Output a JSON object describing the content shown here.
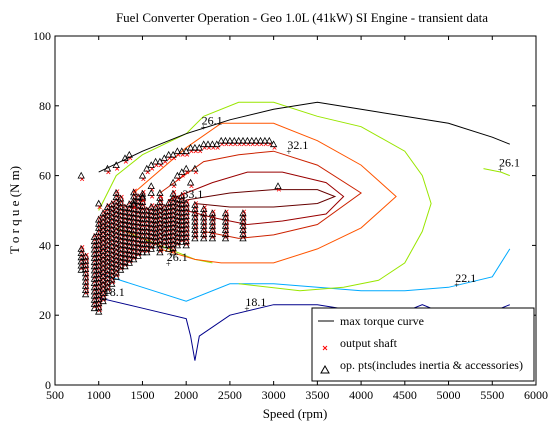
{
  "chart_data": {
    "type": "scatter",
    "title": "Fuel Converter Operation - Geo 1.0L (41kW) SI Engine - transient data",
    "xlabel": "Speed (rpm)",
    "ylabel": "T o r q u e  (N m)",
    "xlim": [
      500,
      6000
    ],
    "ylim": [
      0,
      100
    ],
    "xticks": [
      500,
      1000,
      1500,
      2000,
      2500,
      3000,
      3500,
      4000,
      4500,
      5000,
      5500,
      6000
    ],
    "yticks": [
      0,
      20,
      40,
      60,
      80,
      100
    ],
    "grid": false,
    "legend_position": "bottom-right",
    "legend": [
      {
        "label": "max torque curve",
        "marker": "line",
        "color": "#000000"
      },
      {
        "label": "output shaft",
        "marker": "x",
        "color": "#ff0000"
      },
      {
        "label": "op. pts(includes inertia & accessories)",
        "marker": "triangle",
        "color": "#000000"
      }
    ],
    "max_torque_curve": {
      "x": [
        1000,
        1500,
        2000,
        2500,
        3000,
        3500,
        4000,
        4500,
        5000,
        5500,
        5700
      ],
      "y": [
        61,
        67,
        72,
        76,
        79,
        81,
        79,
        77,
        75,
        71,
        69
      ]
    },
    "contours": [
      {
        "label": "18.1",
        "color": "#00008b",
        "x": [
          1000,
          1500,
          2000,
          2050,
          2100,
          2150,
          2500,
          3000,
          3500,
          4000,
          4500,
          4700,
          5000,
          5500,
          5700
        ],
        "y": [
          25,
          22,
          19,
          14,
          7,
          14,
          20,
          23,
          23,
          21,
          21,
          23,
          20,
          21,
          23
        ]
      },
      {
        "label": "22.1",
        "color": "#00aaff",
        "x": [
          1000,
          1500,
          2000,
          2500,
          3000,
          3500,
          4000,
          4500,
          5000,
          5500,
          5700
        ],
        "y": [
          32,
          28,
          24,
          29,
          29,
          28,
          27,
          27,
          28,
          31,
          39
        ]
      },
      {
        "label": "26.1",
        "color": "#99e600",
        "x": [
          1000,
          1200,
          1500,
          2000,
          2200,
          2600,
          3000,
          3500,
          4000,
          4500,
          4700,
          4800,
          4700,
          4500,
          4200,
          3800,
          3300,
          2600
        ],
        "y": [
          50,
          60,
          66,
          72,
          77,
          81,
          81,
          77,
          74,
          67,
          60,
          52,
          44,
          35,
          30,
          28,
          27,
          29
        ]
      },
      {
        "label": "26.1",
        "color": "#99e600",
        "x": [
          5400,
          5600,
          5700
        ],
        "y": [
          62,
          61,
          60
        ]
      },
      {
        "label": "26.1",
        "color": "#99e600",
        "x": [
          1200,
          1500,
          1800,
          2100,
          2300
        ],
        "y": [
          45,
          42,
          39,
          36,
          35
        ]
      },
      {
        "label": "",
        "color": "#ff5500",
        "x": [
          1400,
          2000,
          2400,
          3000,
          3500,
          4000,
          4400,
          4000,
          3500,
          3000,
          2400,
          2100,
          1700
        ],
        "y": [
          55,
          68,
          75,
          75,
          70,
          63,
          54,
          45,
          39,
          35,
          35,
          36,
          39
        ]
      },
      {
        "label": "32.1",
        "color": "#cc2200",
        "x": [
          1700,
          2200,
          2600,
          3000,
          3500,
          4000,
          3500,
          3000,
          2600,
          2200
        ],
        "y": [
          55,
          64,
          66,
          67,
          63,
          55,
          46,
          43,
          42,
          44
        ]
      },
      {
        "label": "33.1",
        "color": "#990000",
        "x": [
          1800,
          2300,
          2700,
          3100,
          3600,
          3800,
          3600,
          3100,
          2700,
          2300,
          2000
        ],
        "y": [
          53,
          58,
          61,
          61,
          58,
          54,
          49,
          47,
          46,
          48,
          50
        ]
      },
      {
        "label": "",
        "color": "#660000",
        "x": [
          2000,
          2500,
          3000,
          3500,
          3700,
          3500,
          3000,
          2500,
          2100
        ],
        "y": [
          53,
          55,
          56,
          56,
          54,
          52,
          51,
          51,
          52
        ]
      }
    ],
    "contour_labels": [
      {
        "text": "26.1",
        "x": 2200,
        "y": 74
      },
      {
        "text": "32.1",
        "x": 3180,
        "y": 67
      },
      {
        "text": "26.1",
        "x": 5600,
        "y": 62
      },
      {
        "text": "33.1",
        "x": 1980,
        "y": 53
      },
      {
        "text": "26.1",
        "x": 1800,
        "y": 35
      },
      {
        "text": "22.1",
        "x": 5100,
        "y": 29
      },
      {
        "text": "18.1",
        "x": 2700,
        "y": 22
      },
      {
        "text": "18.1",
        "x": 1080,
        "y": 25
      }
    ],
    "op_points_upper": [
      [
        800,
        60
      ],
      [
        1000,
        52
      ],
      [
        1100,
        62
      ],
      [
        1200,
        63
      ],
      [
        1300,
        65
      ],
      [
        1350,
        66
      ],
      [
        1500,
        60
      ],
      [
        1550,
        62
      ],
      [
        1600,
        63
      ],
      [
        1650,
        64
      ],
      [
        1700,
        64
      ],
      [
        1750,
        65
      ],
      [
        1800,
        66
      ],
      [
        1850,
        66
      ],
      [
        1900,
        67
      ],
      [
        1950,
        67
      ],
      [
        2000,
        67
      ],
      [
        2050,
        68
      ],
      [
        2100,
        68
      ],
      [
        2150,
        68
      ],
      [
        2200,
        69
      ],
      [
        2250,
        69
      ],
      [
        2300,
        69
      ],
      [
        2350,
        69
      ],
      [
        2400,
        70
      ],
      [
        2450,
        70
      ],
      [
        2500,
        70
      ],
      [
        2550,
        70
      ],
      [
        2600,
        70
      ],
      [
        2650,
        70
      ],
      [
        2700,
        70
      ],
      [
        2750,
        70
      ],
      [
        2800,
        70
      ],
      [
        2850,
        70
      ],
      [
        2900,
        70
      ],
      [
        2950,
        70
      ],
      [
        3000,
        69
      ],
      [
        3050,
        57
      ],
      [
        1700,
        55
      ],
      [
        1850,
        58
      ],
      [
        1900,
        60
      ],
      [
        1950,
        61
      ],
      [
        2000,
        62
      ],
      [
        2100,
        62
      ],
      [
        1600,
        57
      ],
      [
        2050,
        58
      ],
      [
        1400,
        52
      ],
      [
        1500,
        54
      ],
      [
        1600,
        55
      ]
    ],
    "op_points_bands": [
      {
        "x": 950,
        "ymin": 22,
        "ymax": 43
      },
      {
        "x": 1000,
        "ymin": 21,
        "ymax": 48
      },
      {
        "x": 1050,
        "ymin": 24,
        "ymax": 50
      },
      {
        "x": 1100,
        "ymin": 27,
        "ymax": 52
      },
      {
        "x": 1150,
        "ymin": 29,
        "ymax": 53
      },
      {
        "x": 1200,
        "ymin": 31,
        "ymax": 56
      },
      {
        "x": 1250,
        "ymin": 33,
        "ymax": 54
      },
      {
        "x": 1300,
        "ymin": 34,
        "ymax": 52
      },
      {
        "x": 1350,
        "ymin": 35,
        "ymax": 53
      },
      {
        "x": 1400,
        "ymin": 36,
        "ymax": 56
      },
      {
        "x": 1450,
        "ymin": 37,
        "ymax": 54
      },
      {
        "x": 1500,
        "ymin": 38,
        "ymax": 55
      },
      {
        "x": 1550,
        "ymin": 38,
        "ymax": 51
      },
      {
        "x": 1600,
        "ymin": 39,
        "ymax": 52
      },
      {
        "x": 1650,
        "ymin": 40,
        "ymax": 51
      },
      {
        "x": 1700,
        "ymin": 38,
        "ymax": 54
      },
      {
        "x": 1750,
        "ymin": 40,
        "ymax": 52
      },
      {
        "x": 1800,
        "ymin": 39,
        "ymax": 53
      },
      {
        "x": 1850,
        "ymin": 38,
        "ymax": 55
      },
      {
        "x": 1900,
        "ymin": 40,
        "ymax": 54
      },
      {
        "x": 1950,
        "ymin": 41,
        "ymax": 55
      },
      {
        "x": 2000,
        "ymin": 40,
        "ymax": 53
      },
      {
        "x": 2100,
        "ymin": 42,
        "ymax": 52
      },
      {
        "x": 2200,
        "ymin": 42,
        "ymax": 51
      },
      {
        "x": 2300,
        "ymin": 42,
        "ymax": 50
      },
      {
        "x": 2450,
        "ymin": 42,
        "ymax": 50
      },
      {
        "x": 2650,
        "ymin": 42,
        "ymax": 50
      },
      {
        "x": 800,
        "ymin": 33,
        "ymax": 40
      },
      {
        "x": 850,
        "ymin": 26,
        "ymax": 38
      }
    ]
  }
}
